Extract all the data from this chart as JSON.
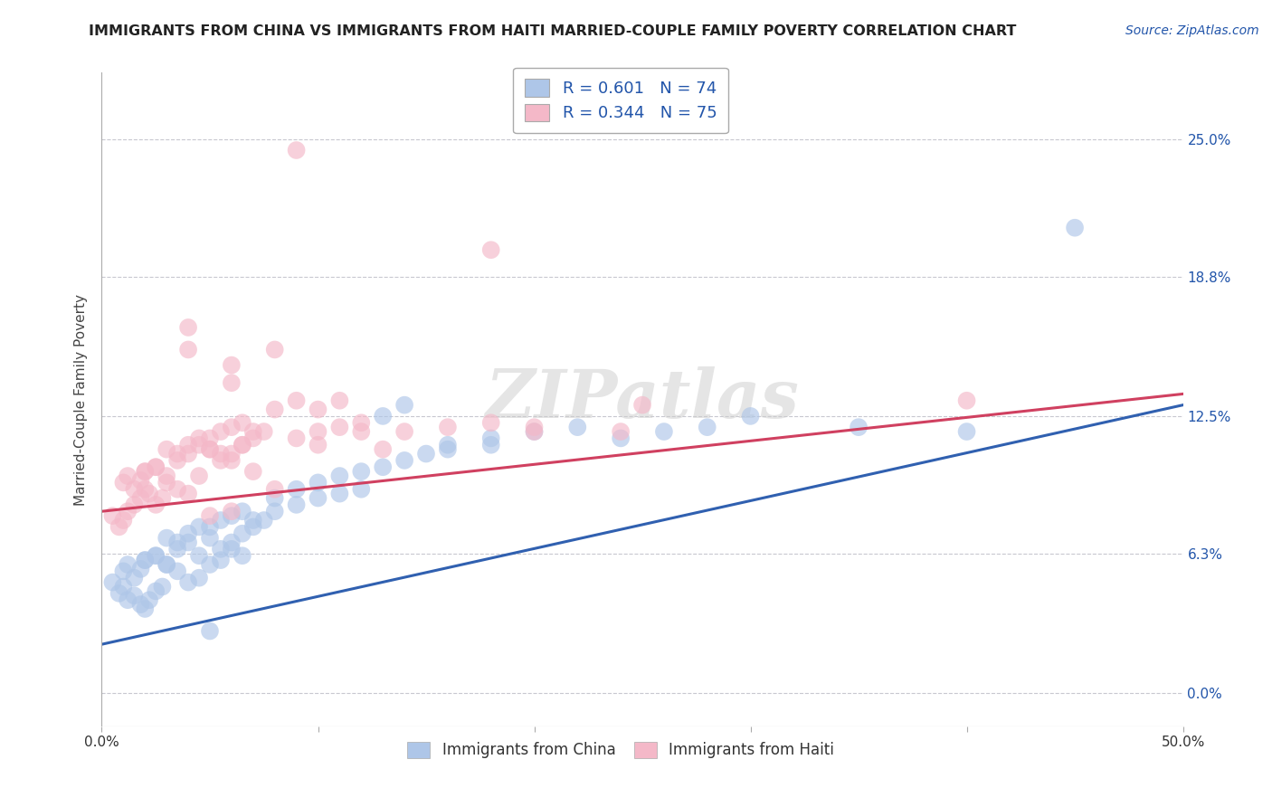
{
  "title": "IMMIGRANTS FROM CHINA VS IMMIGRANTS FROM HAITI MARRIED-COUPLE FAMILY POVERTY CORRELATION CHART",
  "source": "Source: ZipAtlas.com",
  "ylabel": "Married-Couple Family Poverty",
  "xlim": [
    0.0,
    0.5
  ],
  "ylim": [
    -0.015,
    0.28
  ],
  "yticks": [
    0.0,
    0.063,
    0.125,
    0.188,
    0.25
  ],
  "ytick_labels_right": [
    "0.0%",
    "6.3%",
    "12.5%",
    "18.8%",
    "25.0%"
  ],
  "xtick_positions": [
    0.0,
    0.1,
    0.2,
    0.3,
    0.4,
    0.5
  ],
  "xtick_labels": [
    "0.0%",
    "",
    "",
    "",
    "",
    "50.0%"
  ],
  "legend_china": "R = 0.601   N = 74",
  "legend_haiti": "R = 0.344   N = 75",
  "china_color": "#aec6e8",
  "haiti_color": "#f4b8c8",
  "china_line_color": "#3060b0",
  "haiti_line_color": "#d04060",
  "watermark": "ZIPatlas",
  "background_color": "#ffffff",
  "grid_color": "#c8c8d0",
  "legend_text_color": "#2255aa",
  "china_x": [
    0.005,
    0.008,
    0.01,
    0.012,
    0.015,
    0.018,
    0.02,
    0.022,
    0.025,
    0.028,
    0.01,
    0.012,
    0.015,
    0.018,
    0.02,
    0.025,
    0.03,
    0.035,
    0.04,
    0.045,
    0.02,
    0.025,
    0.03,
    0.035,
    0.04,
    0.045,
    0.05,
    0.055,
    0.06,
    0.065,
    0.03,
    0.035,
    0.04,
    0.045,
    0.05,
    0.055,
    0.06,
    0.065,
    0.07,
    0.075,
    0.05,
    0.055,
    0.06,
    0.065,
    0.07,
    0.08,
    0.09,
    0.1,
    0.11,
    0.12,
    0.08,
    0.09,
    0.1,
    0.11,
    0.12,
    0.13,
    0.14,
    0.15,
    0.16,
    0.18,
    0.16,
    0.18,
    0.2,
    0.22,
    0.24,
    0.26,
    0.28,
    0.3,
    0.35,
    0.4,
    0.13,
    0.14,
    0.05,
    0.45
  ],
  "china_y": [
    0.05,
    0.045,
    0.048,
    0.042,
    0.044,
    0.04,
    0.038,
    0.042,
    0.046,
    0.048,
    0.055,
    0.058,
    0.052,
    0.056,
    0.06,
    0.062,
    0.058,
    0.055,
    0.05,
    0.052,
    0.06,
    0.062,
    0.058,
    0.065,
    0.068,
    0.062,
    0.058,
    0.06,
    0.065,
    0.062,
    0.07,
    0.068,
    0.072,
    0.075,
    0.07,
    0.065,
    0.068,
    0.072,
    0.075,
    0.078,
    0.075,
    0.078,
    0.08,
    0.082,
    0.078,
    0.082,
    0.085,
    0.088,
    0.09,
    0.092,
    0.088,
    0.092,
    0.095,
    0.098,
    0.1,
    0.102,
    0.105,
    0.108,
    0.11,
    0.112,
    0.112,
    0.115,
    0.118,
    0.12,
    0.115,
    0.118,
    0.12,
    0.125,
    0.12,
    0.118,
    0.125,
    0.13,
    0.028,
    0.21
  ],
  "haiti_x": [
    0.005,
    0.008,
    0.01,
    0.012,
    0.015,
    0.018,
    0.02,
    0.022,
    0.025,
    0.028,
    0.01,
    0.012,
    0.015,
    0.018,
    0.02,
    0.025,
    0.03,
    0.035,
    0.04,
    0.045,
    0.02,
    0.025,
    0.03,
    0.035,
    0.04,
    0.045,
    0.05,
    0.055,
    0.06,
    0.065,
    0.03,
    0.035,
    0.04,
    0.045,
    0.05,
    0.055,
    0.06,
    0.065,
    0.07,
    0.075,
    0.05,
    0.055,
    0.06,
    0.065,
    0.07,
    0.08,
    0.09,
    0.1,
    0.11,
    0.12,
    0.08,
    0.09,
    0.1,
    0.11,
    0.13,
    0.05,
    0.06,
    0.12,
    0.08,
    0.1,
    0.07,
    0.09,
    0.14,
    0.16,
    0.18,
    0.2,
    0.25,
    0.18,
    0.04,
    0.06,
    0.2,
    0.24,
    0.04,
    0.06,
    0.4
  ],
  "haiti_y": [
    0.08,
    0.075,
    0.078,
    0.082,
    0.085,
    0.088,
    0.092,
    0.09,
    0.085,
    0.088,
    0.095,
    0.098,
    0.092,
    0.096,
    0.1,
    0.102,
    0.095,
    0.092,
    0.09,
    0.098,
    0.1,
    0.102,
    0.098,
    0.105,
    0.108,
    0.112,
    0.11,
    0.108,
    0.105,
    0.112,
    0.11,
    0.108,
    0.112,
    0.115,
    0.11,
    0.105,
    0.108,
    0.112,
    0.115,
    0.118,
    0.115,
    0.118,
    0.12,
    0.122,
    0.118,
    0.092,
    0.115,
    0.118,
    0.12,
    0.122,
    0.128,
    0.132,
    0.128,
    0.132,
    0.11,
    0.08,
    0.082,
    0.118,
    0.155,
    0.112,
    0.1,
    0.245,
    0.118,
    0.12,
    0.122,
    0.118,
    0.13,
    0.2,
    0.155,
    0.14,
    0.12,
    0.118,
    0.165,
    0.148,
    0.132
  ],
  "china_line_x0": 0.0,
  "china_line_y0": 0.022,
  "china_line_x1": 0.5,
  "china_line_y1": 0.13,
  "haiti_line_x0": 0.0,
  "haiti_line_y0": 0.082,
  "haiti_line_x1": 0.5,
  "haiti_line_y1": 0.135
}
